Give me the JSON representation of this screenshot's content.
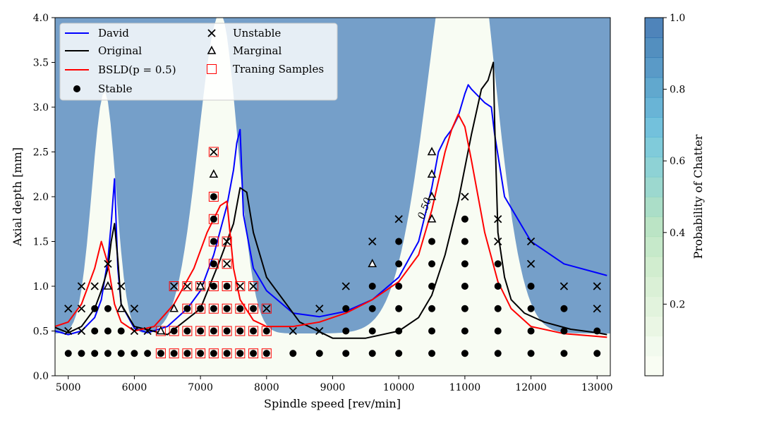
{
  "chart_data": {
    "type": "contour-scatter",
    "xlabel": "Spindle speed [rev/min]",
    "ylabel": "Axial depth [mm]",
    "xlim": [
      4800,
      13200
    ],
    "ylim": [
      0,
      4
    ],
    "xticks": [
      "5000",
      "6000",
      "7000",
      "8000",
      "9000",
      "10000",
      "11000",
      "12000",
      "13000"
    ],
    "yticks": [
      "0.0",
      "0.5",
      "1.0",
      "1.5",
      "2.0",
      "2.5",
      "3.0",
      "3.5",
      "4.0"
    ],
    "contour_label": "0.50",
    "colorbar": {
      "label": "Probability of Chatter",
      "ticks": [
        "0.2",
        "0.4",
        "0.6",
        "0.8",
        "1.0"
      ],
      "colors": [
        "#f7fcf0",
        "#eef8e9",
        "#e4f4dd",
        "#daf0d4",
        "#d0ecca",
        "#c4e8c2",
        "#b6e3bb",
        "#a8ddb5",
        "#94d5b9",
        "#80cdc1",
        "#6ec5c9",
        "#5cbcd0",
        "#4bafd2",
        "#3f9fcb",
        "#358fc0",
        "#2b7eb7",
        "#2270ad",
        "#1d62a6"
      ],
      "alpha": 0.78,
      "grid": false
    },
    "legend": {
      "placement": "upper-left",
      "entries": [
        {
          "label": "David",
          "kind": "line",
          "color": "#0000ff"
        },
        {
          "label": "Original",
          "kind": "line",
          "color": "#000000"
        },
        {
          "label": "BSLD(p = 0.5)",
          "kind": "line",
          "color": "#ff0000"
        },
        {
          "label": "Stable",
          "kind": "circle",
          "color": "#000000"
        },
        {
          "label": "Unstable",
          "kind": "cross",
          "color": "#000000"
        },
        {
          "label": "Marginal",
          "kind": "triangle",
          "color": "#000000"
        },
        {
          "label": "Traning Samples",
          "kind": "square",
          "color": "#ff0000"
        }
      ]
    },
    "series": [
      {
        "name": "David",
        "color": "#0000ff",
        "x": [
          4800,
          5000,
          5200,
          5400,
          5500,
          5600,
          5650,
          5700,
          5750,
          5800,
          6000,
          6200,
          6500,
          6800,
          7000,
          7200,
          7400,
          7500,
          7550,
          7600,
          7650,
          7800,
          8000,
          8400,
          8800,
          9200,
          9600,
          10000,
          10300,
          10500,
          10600,
          10700,
          10800,
          10900,
          11000,
          11050,
          11100,
          11300,
          11400,
          11450,
          11600,
          12000,
          12500,
          13000,
          13150
        ],
        "y": [
          0.5,
          0.46,
          0.5,
          0.65,
          0.85,
          1.3,
          1.7,
          2.2,
          1.2,
          0.8,
          0.53,
          0.48,
          0.55,
          0.75,
          0.95,
          1.35,
          1.9,
          2.3,
          2.6,
          2.75,
          1.8,
          1.2,
          0.95,
          0.7,
          0.66,
          0.72,
          0.85,
          1.1,
          1.5,
          2.1,
          2.5,
          2.65,
          2.75,
          2.9,
          3.15,
          3.25,
          3.2,
          3.05,
          3.0,
          2.7,
          2.0,
          1.5,
          1.25,
          1.15,
          1.12
        ]
      },
      {
        "name": "Original",
        "color": "#000000",
        "x": [
          4800,
          5000,
          5200,
          5400,
          5500,
          5600,
          5650,
          5700,
          5750,
          5800,
          6000,
          6500,
          7000,
          7300,
          7500,
          7600,
          7700,
          7800,
          8000,
          8500,
          9000,
          9500,
          10000,
          10300,
          10500,
          10700,
          10900,
          11100,
          11250,
          11350,
          11430,
          11450,
          11500,
          11600,
          11700,
          11900,
          12200,
          12600,
          13000,
          13150
        ],
        "y": [
          0.54,
          0.48,
          0.55,
          0.75,
          0.95,
          1.2,
          1.5,
          1.7,
          1.3,
          0.8,
          0.55,
          0.46,
          0.75,
          1.3,
          1.7,
          2.1,
          2.05,
          1.6,
          1.1,
          0.6,
          0.42,
          0.42,
          0.5,
          0.65,
          0.9,
          1.35,
          1.95,
          2.7,
          3.2,
          3.3,
          3.5,
          2.85,
          1.6,
          1.1,
          0.85,
          0.7,
          0.6,
          0.52,
          0.48,
          0.46
        ]
      },
      {
        "name": "BSLD(p = 0.5)",
        "color": "#ff0000",
        "x": [
          4800,
          5000,
          5200,
          5400,
          5500,
          5600,
          5700,
          5800,
          6000,
          6300,
          6600,
          6900,
          7100,
          7300,
          7400,
          7500,
          7600,
          7800,
          8000,
          8400,
          8800,
          9200,
          9600,
          10000,
          10300,
          10500,
          10700,
          10800,
          10900,
          11000,
          11100,
          11300,
          11500,
          11700,
          12000,
          12500,
          13000,
          13150
        ],
        "y": [
          0.55,
          0.6,
          0.8,
          1.2,
          1.5,
          1.25,
          0.8,
          0.6,
          0.5,
          0.55,
          0.8,
          1.2,
          1.6,
          1.9,
          1.95,
          1.2,
          0.85,
          0.62,
          0.55,
          0.55,
          0.6,
          0.7,
          0.85,
          1.05,
          1.35,
          1.85,
          2.5,
          2.75,
          2.92,
          2.78,
          2.4,
          1.6,
          1.05,
          0.75,
          0.55,
          0.47,
          0.44,
          0.43
        ]
      }
    ],
    "markers": {
      "stable": [
        [
          5000,
          0.25
        ],
        [
          5200,
          0.25
        ],
        [
          5400,
          0.25
        ],
        [
          5600,
          0.25
        ],
        [
          5800,
          0.25
        ],
        [
          6000,
          0.25
        ],
        [
          6200,
          0.25
        ],
        [
          6400,
          0.25
        ],
        [
          6600,
          0.25
        ],
        [
          6800,
          0.25
        ],
        [
          7000,
          0.25
        ],
        [
          7200,
          0.25
        ],
        [
          7400,
          0.25
        ],
        [
          7600,
          0.25
        ],
        [
          7800,
          0.25
        ],
        [
          8000,
          0.25
        ],
        [
          8400,
          0.25
        ],
        [
          8800,
          0.25
        ],
        [
          9200,
          0.25
        ],
        [
          9600,
          0.25
        ],
        [
          10000,
          0.25
        ],
        [
          10500,
          0.25
        ],
        [
          11000,
          0.25
        ],
        [
          11500,
          0.25
        ],
        [
          12000,
          0.25
        ],
        [
          12500,
          0.25
        ],
        [
          13000,
          0.25
        ],
        [
          5400,
          0.5
        ],
        [
          5600,
          0.5
        ],
        [
          5800,
          0.5
        ],
        [
          6600,
          0.5
        ],
        [
          6800,
          0.5
        ],
        [
          7000,
          0.5
        ],
        [
          7200,
          0.5
        ],
        [
          7400,
          0.5
        ],
        [
          7600,
          0.5
        ],
        [
          7800,
          0.5
        ],
        [
          8000,
          0.5
        ],
        [
          9200,
          0.5
        ],
        [
          9600,
          0.5
        ],
        [
          10000,
          0.5
        ],
        [
          10500,
          0.5
        ],
        [
          11000,
          0.5
        ],
        [
          11500,
          0.5
        ],
        [
          12000,
          0.5
        ],
        [
          12500,
          0.5
        ],
        [
          13000,
          0.5
        ],
        [
          5400,
          0.75
        ],
        [
          5600,
          0.75
        ],
        [
          6800,
          0.75
        ],
        [
          7000,
          0.75
        ],
        [
          7200,
          0.75
        ],
        [
          7400,
          0.75
        ],
        [
          7600,
          0.75
        ],
        [
          7800,
          0.75
        ],
        [
          9200,
          0.75
        ],
        [
          9600,
          0.75
        ],
        [
          10000,
          0.75
        ],
        [
          10500,
          0.75
        ],
        [
          11000,
          0.75
        ],
        [
          11500,
          0.75
        ],
        [
          12000,
          0.75
        ],
        [
          12500,
          0.75
        ],
        [
          7200,
          1.0
        ],
        [
          7400,
          1.0
        ],
        [
          9600,
          1.0
        ],
        [
          10000,
          1.0
        ],
        [
          10500,
          1.0
        ],
        [
          11000,
          1.0
        ],
        [
          11500,
          1.0
        ],
        [
          12000,
          1.0
        ],
        [
          7200,
          1.25
        ],
        [
          10000,
          1.25
        ],
        [
          10500,
          1.25
        ],
        [
          11000,
          1.25
        ],
        [
          11500,
          1.25
        ],
        [
          7200,
          1.5
        ],
        [
          10000,
          1.5
        ],
        [
          10500,
          1.5
        ],
        [
          11000,
          1.5
        ],
        [
          7200,
          1.75
        ],
        [
          11000,
          1.75
        ],
        [
          7200,
          2.0
        ]
      ],
      "unstable": [
        [
          5000,
          0.5
        ],
        [
          5200,
          0.5
        ],
        [
          6000,
          0.5
        ],
        [
          6200,
          0.5
        ],
        [
          8400,
          0.5
        ],
        [
          8800,
          0.5
        ],
        [
          5000,
          0.75
        ],
        [
          5200,
          0.75
        ],
        [
          6000,
          0.75
        ],
        [
          8000,
          0.75
        ],
        [
          8800,
          0.75
        ],
        [
          13000,
          0.75
        ],
        [
          5200,
          1.0
        ],
        [
          5400,
          1.0
        ],
        [
          5800,
          1.0
        ],
        [
          6600,
          1.0
        ],
        [
          6800,
          1.0
        ],
        [
          7000,
          1.0
        ],
        [
          7600,
          1.0
        ],
        [
          7800,
          1.0
        ],
        [
          9200,
          1.0
        ],
        [
          12500,
          1.0
        ],
        [
          13000,
          1.0
        ],
        [
          5600,
          1.25
        ],
        [
          7400,
          1.25
        ],
        [
          12000,
          1.25
        ],
        [
          7400,
          1.5
        ],
        [
          9600,
          1.5
        ],
        [
          11500,
          1.5
        ],
        [
          12000,
          1.5
        ],
        [
          10000,
          1.75
        ],
        [
          11500,
          1.75
        ],
        [
          11000,
          2.0
        ],
        [
          7200,
          2.5
        ]
      ],
      "marginal": [
        [
          6400,
          0.5
        ],
        [
          5800,
          0.75
        ],
        [
          6600,
          0.75
        ],
        [
          5600,
          1.0
        ],
        [
          7000,
          1.0
        ],
        [
          9600,
          1.25
        ],
        [
          10500,
          1.75
        ],
        [
          10500,
          2.0
        ],
        [
          7200,
          2.25
        ],
        [
          10500,
          2.25
        ],
        [
          10500,
          2.5
        ]
      ],
      "training": [
        [
          6400,
          0.25
        ],
        [
          6600,
          0.25
        ],
        [
          6800,
          0.25
        ],
        [
          7000,
          0.25
        ],
        [
          7200,
          0.25
        ],
        [
          7400,
          0.25
        ],
        [
          7600,
          0.25
        ],
        [
          7800,
          0.25
        ],
        [
          8000,
          0.25
        ],
        [
          6400,
          0.5
        ],
        [
          6600,
          0.5
        ],
        [
          6800,
          0.5
        ],
        [
          7000,
          0.5
        ],
        [
          7200,
          0.5
        ],
        [
          7400,
          0.5
        ],
        [
          7600,
          0.5
        ],
        [
          7800,
          0.5
        ],
        [
          8000,
          0.5
        ],
        [
          6800,
          0.75
        ],
        [
          7000,
          0.75
        ],
        [
          7200,
          0.75
        ],
        [
          7400,
          0.75
        ],
        [
          7600,
          0.75
        ],
        [
          7800,
          0.75
        ],
        [
          8000,
          0.75
        ],
        [
          6600,
          1.0
        ],
        [
          6800,
          1.0
        ],
        [
          7000,
          1.0
        ],
        [
          7200,
          1.0
        ],
        [
          7400,
          1.0
        ],
        [
          7600,
          1.0
        ],
        [
          7800,
          1.0
        ],
        [
          7200,
          1.25
        ],
        [
          7400,
          1.25
        ],
        [
          7200,
          1.5
        ],
        [
          7400,
          1.5
        ],
        [
          7200,
          1.75
        ],
        [
          7200,
          2.0
        ],
        [
          7200,
          2.5
        ]
      ]
    },
    "contour_ridges": [
      {
        "center": 5550,
        "width_left": 190,
        "width_right": 170,
        "height": 2.0
      },
      {
        "center": 7300,
        "width_left": 330,
        "width_right": 260,
        "height": 2.65
      },
      {
        "center": 11000,
        "width_left": 520,
        "width_right": 430,
        "height": 3.75
      }
    ],
    "contour_baseline": 0.35
  }
}
